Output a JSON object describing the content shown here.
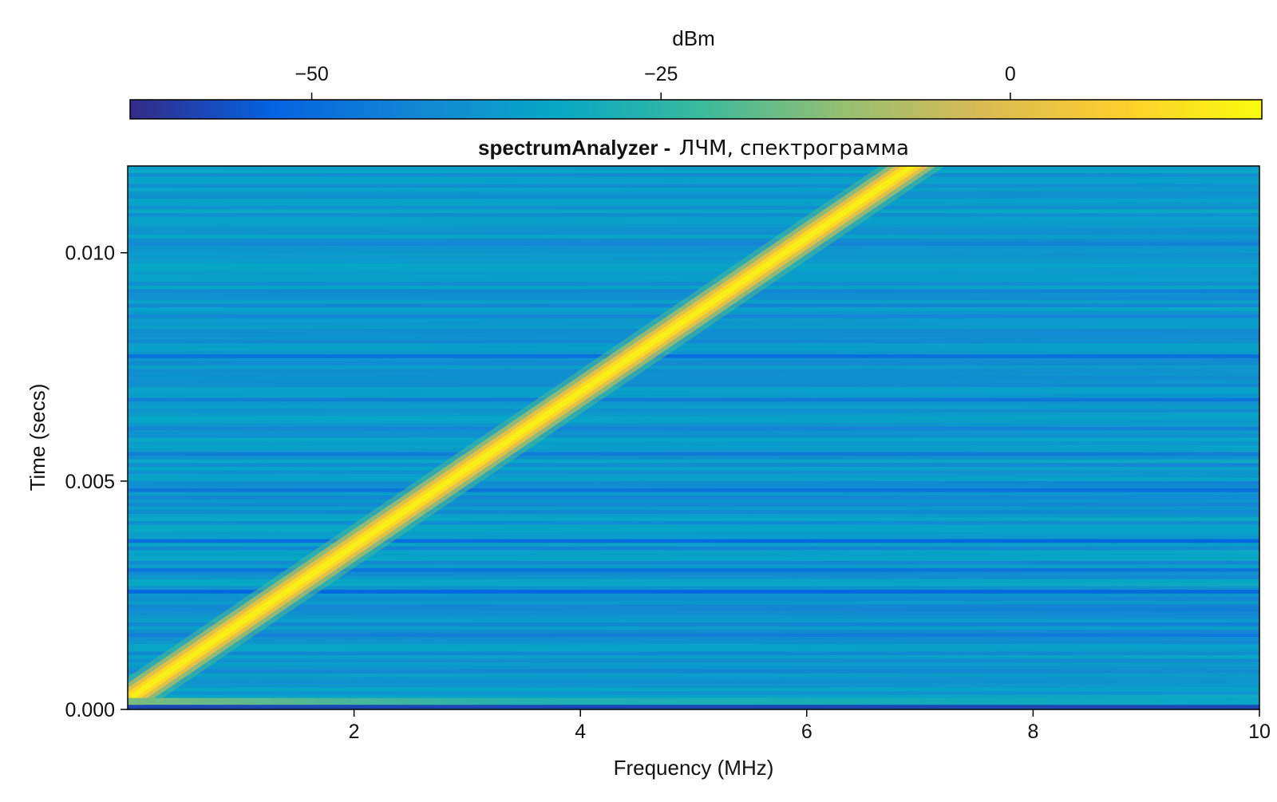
{
  "chart_data": {
    "type": "heatmap",
    "title_bold": "spectrumAnalyzer -",
    "title_rest": "ЛЧМ, спектрограмма",
    "xlabel": "Frequency (MHz)",
    "ylabel": "Time (secs)",
    "xlim": [
      0,
      10
    ],
    "ylim": [
      0,
      0.0119
    ],
    "x_ticks": [
      {
        "value": 2,
        "label": "2"
      },
      {
        "value": 4,
        "label": "4"
      },
      {
        "value": 6,
        "label": "6"
      },
      {
        "value": 8,
        "label": "8"
      },
      {
        "value": 10,
        "label": "10"
      }
    ],
    "y_ticks": [
      {
        "value": 0.0,
        "label": "0.000"
      },
      {
        "value": 0.005,
        "label": "0.005"
      },
      {
        "value": 0.01,
        "label": "0.010"
      }
    ],
    "colorbar": {
      "label": "dBm",
      "range": [
        -63,
        18
      ],
      "colormap": "parula",
      "placement": "top",
      "ticks": [
        {
          "value": -50,
          "label": "−50"
        },
        {
          "value": -25,
          "label": "−25"
        },
        {
          "value": 0,
          "label": "0"
        }
      ]
    },
    "chirp": {
      "start": {
        "freq_mhz": 0.05,
        "time_s": 0.0003
      },
      "end": {
        "freq_mhz": 7.0,
        "time_s": 0.0119
      },
      "peak_dbm": 15,
      "background_dbm": -38
    },
    "colors": {
      "parula": [
        "#352a87",
        "#0363e1",
        "#1485d4",
        "#06a7c6",
        "#38b99e",
        "#92bf73",
        "#d9ba56",
        "#fcce2e",
        "#f9fb0e"
      ]
    }
  }
}
